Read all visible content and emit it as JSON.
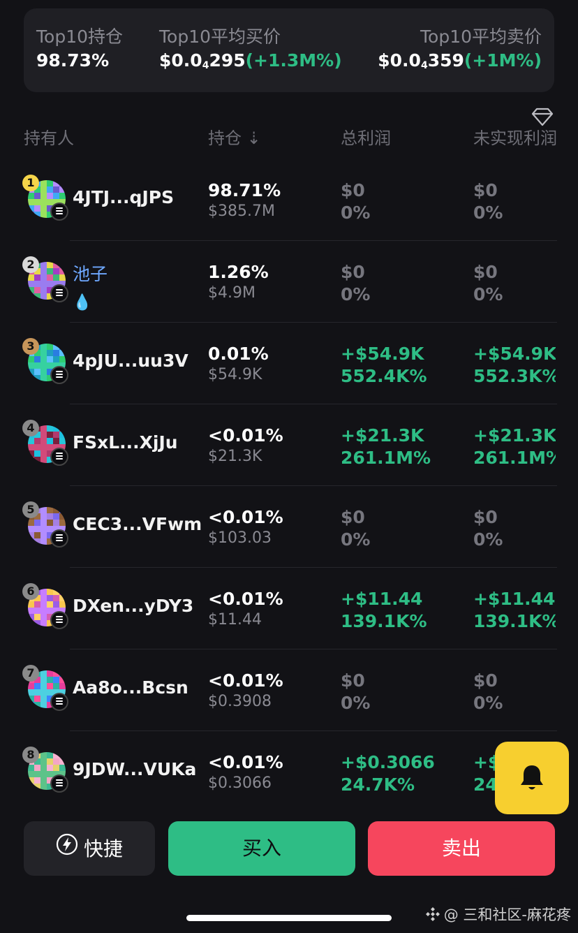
{
  "stats": {
    "top10_holding": {
      "label": "Top10持仓",
      "value": "98.73%"
    },
    "top10_avg_buy": {
      "label": "Top10平均买价",
      "price_prefix": "$0.0",
      "price_zeros": "4",
      "price_suffix": "295",
      "change": "(+1.3M%)"
    },
    "top10_avg_sell": {
      "label": "Top10平均卖价",
      "price_prefix": "$0.0",
      "price_zeros": "4",
      "price_suffix": "359",
      "change": "(+1M%)"
    }
  },
  "columns": [
    "持有人",
    "持仓 ⇣",
    "总利润",
    "未实现利润"
  ],
  "icons": {
    "filter": "diamond-icon",
    "alert": "bell-icon",
    "quick": "lightning-icon",
    "chain": "solana-icon",
    "watermark": "binance-logo"
  },
  "colors": {
    "positive": "#2ebd85",
    "negative": "#f6465d",
    "accent": "#f7cf2f",
    "gold": "#f5d54a",
    "silver": "#d9d9d9",
    "bronze": "#c7955a"
  },
  "holders": [
    {
      "rank": "1",
      "name": "4JTJ...qJPS",
      "pct": "98.71%",
      "value": "$385.7M",
      "pnl": "$0",
      "pnl_pct": "0%",
      "upnl": "$0",
      "upnl_pct": "0%",
      "positive": false
    },
    {
      "rank": "2",
      "name": "池子",
      "tag": "💧",
      "pct": "1.26%",
      "value": "$4.9M",
      "pnl": "$0",
      "pnl_pct": "0%",
      "upnl": "$0",
      "upnl_pct": "0%",
      "positive": false
    },
    {
      "rank": "3",
      "name": "4pJU...uu3V",
      "pct": "0.01%",
      "value": "$54.9K",
      "pnl": "+$54.9K",
      "pnl_pct": "552.4K%",
      "upnl": "+$54.9K",
      "upnl_pct": "552.3K%",
      "positive": true
    },
    {
      "rank": "4",
      "name": "FSxL...XjJu",
      "pct": "<0.01%",
      "value": "$21.3K",
      "pnl": "+$21.3K",
      "pnl_pct": "261.1M%",
      "upnl": "+$21.3K",
      "upnl_pct": "261.1M%",
      "positive": true
    },
    {
      "rank": "5",
      "name": "CEC3...VFwm",
      "pct": "<0.01%",
      "value": "$103.03",
      "pnl": "$0",
      "pnl_pct": "0%",
      "upnl": "$0",
      "upnl_pct": "0%",
      "positive": false
    },
    {
      "rank": "6",
      "name": "DXen...yDY3",
      "pct": "<0.01%",
      "value": "$11.44",
      "pnl": "+$11.44",
      "pnl_pct": "139.1K%",
      "upnl": "+$11.44",
      "upnl_pct": "139.1K%",
      "positive": true
    },
    {
      "rank": "7",
      "name": "Aa8o...Bcsn",
      "pct": "<0.01%",
      "value": "$0.3908",
      "pnl": "$0",
      "pnl_pct": "0%",
      "upnl": "$0",
      "upnl_pct": "0%",
      "positive": false
    },
    {
      "rank": "8",
      "name": "9JDW...VUKa",
      "pct": "<0.01%",
      "value": "$0.3066",
      "pnl": "+$0.3066",
      "pnl_pct": "24.7K%",
      "upnl": "+$0.3066",
      "upnl_pct": "24.7K%",
      "positive": true
    }
  ],
  "actions": {
    "quick": "快捷",
    "buy": "买入",
    "sell": "卖出"
  },
  "watermark": "@ 三和社区-麻花疼"
}
